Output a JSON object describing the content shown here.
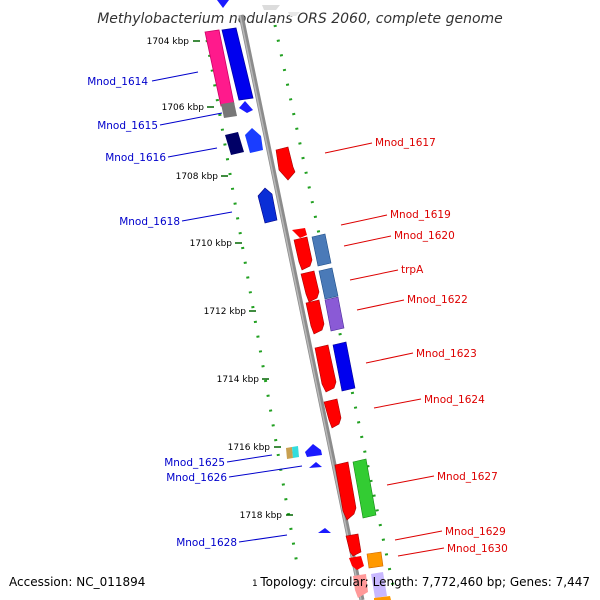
{
  "title": "Methylobacterium nodulans ORS 2060, complete genome",
  "accession": "Accession: NC_011894",
  "topology": "Topology: circular; Length: 7,772,460 bp; Genes: 7,447",
  "page_marker": "1",
  "colors": {
    "backbone": "#8c8c8c",
    "tick": "#22a022",
    "left_label": "#0000cc",
    "right_label": "#dd0000"
  },
  "kbp_ticks": [
    {
      "label": "1704 kbp",
      "pos_kbp": 1704
    },
    {
      "label": "1706 kbp",
      "pos_kbp": 1706
    },
    {
      "label": "1708 kbp",
      "pos_kbp": 1708
    },
    {
      "label": "1710 kbp",
      "pos_kbp": 1710
    },
    {
      "label": "1712 kbp",
      "pos_kbp": 1712
    },
    {
      "label": "1714 kbp",
      "pos_kbp": 1714
    },
    {
      "label": "1716 kbp",
      "pos_kbp": 1716
    },
    {
      "label": "1718 kbp",
      "pos_kbp": 1718
    }
  ],
  "left_labels": [
    "Mnod_1614",
    "Mnod_1615",
    "Mnod_1616",
    "Mnod_1618",
    "Mnod_1625",
    "Mnod_1626",
    "Mnod_1628"
  ],
  "right_labels": [
    "Mnod_1617",
    "Mnod_1619",
    "Mnod_1620",
    "trpA",
    "Mnod_1622",
    "Mnod_1623",
    "Mnod_1624",
    "Mnod_1627",
    "Mnod_1629",
    "Mnod_1630"
  ]
}
